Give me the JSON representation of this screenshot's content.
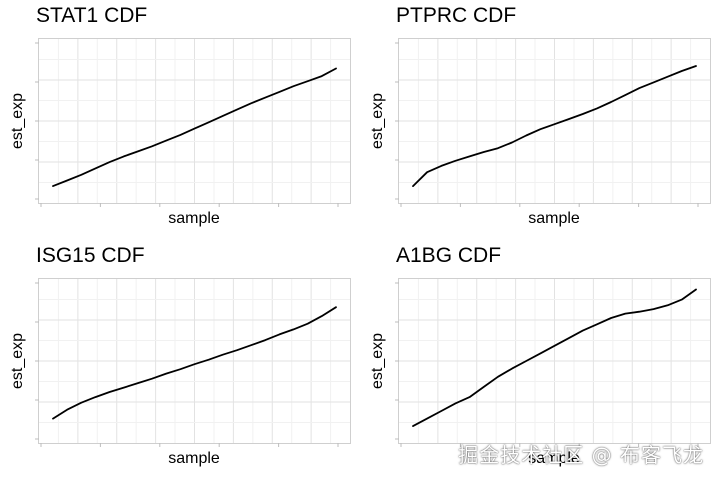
{
  "chart_data": [
    {
      "type": "line",
      "title": "STAT1 CDF",
      "xlabel": "sample",
      "ylabel": "est_exp",
      "grid": true,
      "line_color": "#000000",
      "x": [
        0,
        0.05,
        0.1,
        0.15,
        0.2,
        0.25,
        0.3,
        0.35,
        0.4,
        0.45,
        0.5,
        0.55,
        0.6,
        0.65,
        0.7,
        0.75,
        0.8,
        0.85,
        0.9,
        0.95,
        1.0
      ],
      "values": [
        0.02,
        0.065,
        0.11,
        0.16,
        0.21,
        0.255,
        0.295,
        0.335,
        0.38,
        0.425,
        0.475,
        0.525,
        0.575,
        0.625,
        0.675,
        0.72,
        0.765,
        0.81,
        0.85,
        0.89,
        0.95
      ]
    },
    {
      "type": "line",
      "title": "PTPRC CDF",
      "xlabel": "sample",
      "ylabel": "est_exp",
      "grid": true,
      "line_color": "#000000",
      "x": [
        0,
        0.05,
        0.1,
        0.15,
        0.2,
        0.25,
        0.3,
        0.35,
        0.4,
        0.45,
        0.5,
        0.55,
        0.6,
        0.65,
        0.7,
        0.75,
        0.8,
        0.85,
        0.9,
        0.95,
        1.0
      ],
      "values": [
        0.02,
        0.13,
        0.18,
        0.22,
        0.255,
        0.29,
        0.32,
        0.365,
        0.42,
        0.47,
        0.51,
        0.55,
        0.59,
        0.635,
        0.685,
        0.74,
        0.795,
        0.84,
        0.885,
        0.93,
        0.97
      ]
    },
    {
      "type": "line",
      "title": "ISG15 CDF",
      "xlabel": "sample",
      "ylabel": "est_exp",
      "grid": true,
      "line_color": "#000000",
      "x": [
        0,
        0.05,
        0.1,
        0.15,
        0.2,
        0.25,
        0.3,
        0.35,
        0.4,
        0.45,
        0.5,
        0.55,
        0.6,
        0.65,
        0.7,
        0.75,
        0.8,
        0.85,
        0.9,
        0.95,
        1.0
      ],
      "values": [
        0.08,
        0.15,
        0.205,
        0.25,
        0.29,
        0.325,
        0.36,
        0.395,
        0.435,
        0.47,
        0.51,
        0.545,
        0.585,
        0.62,
        0.66,
        0.7,
        0.745,
        0.785,
        0.83,
        0.89,
        0.96
      ]
    },
    {
      "type": "line",
      "title": "A1BG CDF",
      "xlabel": "sample",
      "ylabel": "est_exp",
      "grid": true,
      "line_color": "#000000",
      "x": [
        0,
        0.05,
        0.1,
        0.15,
        0.2,
        0.25,
        0.3,
        0.35,
        0.4,
        0.45,
        0.5,
        0.55,
        0.6,
        0.65,
        0.7,
        0.75,
        0.8,
        0.85,
        0.9,
        0.95,
        1.0
      ],
      "values": [
        0.02,
        0.08,
        0.14,
        0.2,
        0.25,
        0.33,
        0.41,
        0.475,
        0.535,
        0.595,
        0.655,
        0.715,
        0.775,
        0.825,
        0.875,
        0.91,
        0.925,
        0.945,
        0.975,
        1.02,
        1.1
      ]
    }
  ],
  "watermark": "掘金技术社区 @ 布客飞龙"
}
